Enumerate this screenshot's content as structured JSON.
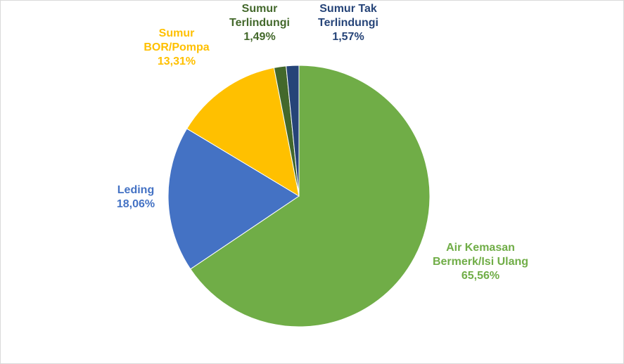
{
  "chart_data": {
    "type": "pie",
    "title": "",
    "slices": [
      {
        "name_lines": [
          "Air Kemasan",
          "Bermerk/Isi Ulang"
        ],
        "pct_label": "65,56%",
        "value": 65.56,
        "color": "#70ad47"
      },
      {
        "name_lines": [
          "Leding"
        ],
        "pct_label": "18,06%",
        "value": 18.06,
        "color": "#4472c4"
      },
      {
        "name_lines": [
          "Sumur",
          "BOR/Pompa"
        ],
        "pct_label": "13,31%",
        "value": 13.31,
        "color": "#ffc000"
      },
      {
        "name_lines": [
          "Sumur",
          "Terlindungi"
        ],
        "pct_label": "1,49%",
        "value": 1.49,
        "color": "#43682b"
      },
      {
        "name_lines": [
          "Sumur Tak",
          "Terlindungi"
        ],
        "pct_label": "1,57%",
        "value": 1.57,
        "color": "#264478"
      }
    ],
    "legend": "none",
    "start_angle_deg": 0,
    "direction": "clockwise"
  }
}
